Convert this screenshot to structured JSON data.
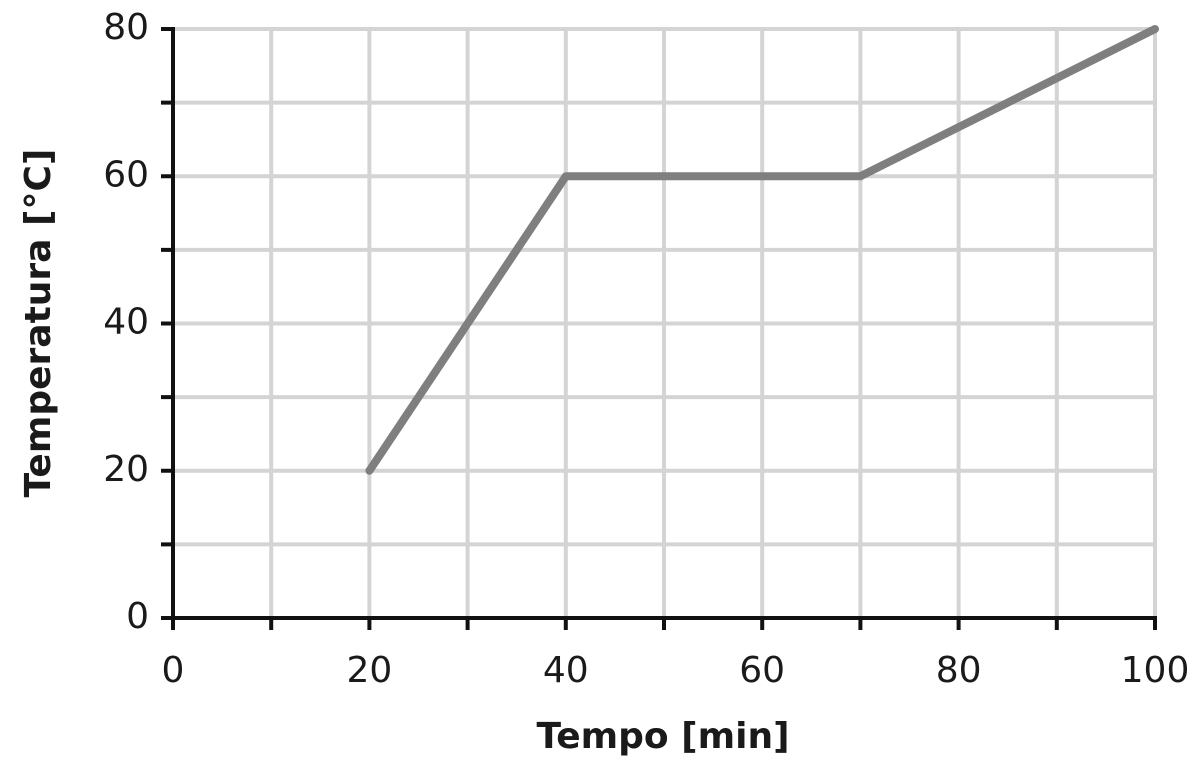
{
  "chart_data": {
    "type": "line",
    "x_label": "Tempo [min]",
    "y_label": "Temperatura [°C]",
    "x": [
      20,
      40,
      70,
      100
    ],
    "series": [
      {
        "color": "#7f7f7f",
        "values": [
          20,
          60,
          60,
          80
        ]
      }
    ],
    "xlim": [
      0,
      100
    ],
    "xticks": [
      0,
      20,
      40,
      60,
      80,
      100
    ],
    "xminorticks": [
      10,
      30,
      50,
      70,
      90
    ],
    "ylim": [
      0,
      80
    ],
    "yticks": [
      0,
      20,
      40,
      60,
      80
    ],
    "yminorticks": [
      10,
      30,
      50,
      70
    ],
    "grid": true
  }
}
